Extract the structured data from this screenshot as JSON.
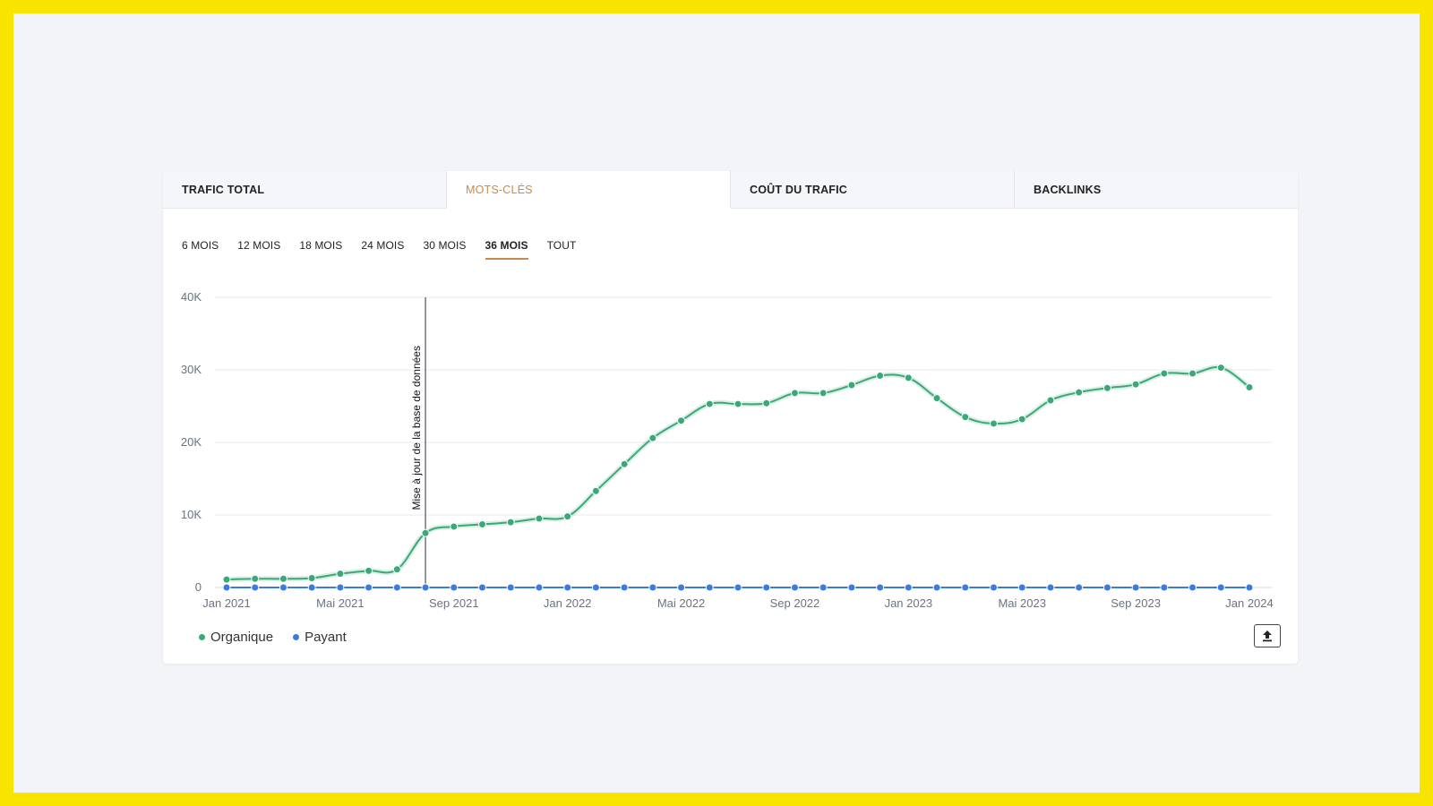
{
  "tabs": [
    {
      "label": "TRAFIC TOTAL"
    },
    {
      "label": "MOTS-CLÉS"
    },
    {
      "label": "COÛT DU TRAFIC"
    },
    {
      "label": "BACKLINKS"
    }
  ],
  "active_tab": 1,
  "periods": [
    {
      "label": "6 MOIS"
    },
    {
      "label": "12 MOIS"
    },
    {
      "label": "18 MOIS"
    },
    {
      "label": "24 MOIS"
    },
    {
      "label": "30 MOIS"
    },
    {
      "label": "36 MOIS"
    },
    {
      "label": "TOUT"
    }
  ],
  "active_period": 5,
  "legend": [
    {
      "label": "Organique",
      "color": "#3aa877"
    },
    {
      "label": "Payant",
      "color": "#3b7ae0"
    }
  ],
  "export_icon": "upload-icon",
  "chart_data": {
    "type": "line",
    "x": [
      "Jan 2021",
      "Feb 2021",
      "Mar 2021",
      "Apr 2021",
      "Mai 2021",
      "Jun 2021",
      "Jul 2021",
      "Aug 2021",
      "Sep 2021",
      "Oct 2021",
      "Nov 2021",
      "Dec 2021",
      "Jan 2022",
      "Feb 2022",
      "Mar 2022",
      "Apr 2022",
      "Mai 2022",
      "Jun 2022",
      "Jul 2022",
      "Aug 2022",
      "Sep 2022",
      "Oct 2022",
      "Nov 2022",
      "Dec 2022",
      "Jan 2023",
      "Feb 2023",
      "Mar 2023",
      "Apr 2023",
      "Mai 2023",
      "Jun 2023",
      "Jul 2023",
      "Aug 2023",
      "Sep 2023",
      "Oct 2023",
      "Nov 2023",
      "Dec 2023",
      "Jan 2024"
    ],
    "x_tick_labels": [
      "Jan 2021",
      "Mai 2021",
      "Sep 2021",
      "Jan 2022",
      "Mai 2022",
      "Sep 2022",
      "Jan 2023",
      "Mai 2023",
      "Sep 2023",
      "Jan 2024"
    ],
    "series": [
      {
        "name": "Organique",
        "color": "#3aa877",
        "values": [
          1100,
          1200,
          1200,
          1300,
          1900,
          2300,
          2500,
          7500,
          8400,
          8700,
          9000,
          9500,
          9800,
          13300,
          17000,
          20600,
          23000,
          25300,
          25300,
          25400,
          26800,
          26800,
          27900,
          29200,
          28900,
          26100,
          23500,
          22600,
          23200,
          25800,
          26900,
          27500,
          28000,
          29500,
          29500,
          30300,
          27600
        ]
      },
      {
        "name": "Payant",
        "color": "#3b7ae0",
        "values": [
          0,
          0,
          0,
          0,
          0,
          0,
          0,
          0,
          0,
          0,
          0,
          0,
          0,
          0,
          0,
          0,
          0,
          0,
          0,
          0,
          0,
          0,
          0,
          0,
          0,
          0,
          0,
          0,
          0,
          0,
          0,
          0,
          0,
          0,
          0,
          0,
          0
        ]
      }
    ],
    "y_ticks": [
      "0",
      "10K",
      "20K",
      "30K",
      "40K"
    ],
    "ylim": [
      0,
      40000
    ],
    "grid": true,
    "legend_position": "bottom-left",
    "annotations": [
      {
        "x": "Aug 2021",
        "label": "Mise à jour de la base de données"
      }
    ]
  }
}
